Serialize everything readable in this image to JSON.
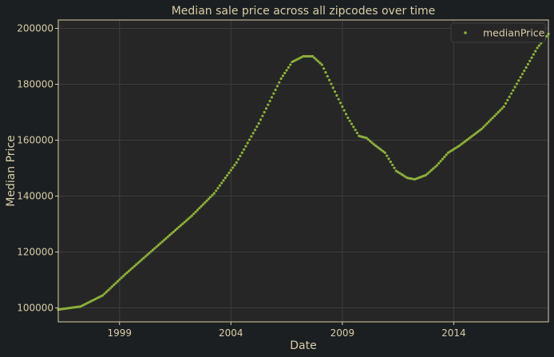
{
  "colors": {
    "background": "#1b1f21",
    "plot_background": "#262626",
    "grid": "#3d3d3d",
    "text": "#d9cda8",
    "frame": "#d9cda8",
    "series": "#8db13a"
  },
  "chart_data": {
    "type": "scatter",
    "title": "Median sale price across all zipcodes over time",
    "xlabel": "Date",
    "ylabel": "Median Price",
    "xlim": [
      "1996-04",
      "2018-04"
    ],
    "ylim": [
      95000,
      203000
    ],
    "xticks": [
      "1999",
      "2004",
      "2009",
      "2014"
    ],
    "yticks": [
      "100000",
      "120000",
      "140000",
      "160000",
      "180000",
      "200000"
    ],
    "grid": true,
    "legend": {
      "placement": "top-right"
    },
    "series": [
      {
        "name": "medianPrice",
        "marker": "point",
        "anchors": [
          [
            "1996-04",
            99400
          ],
          [
            "1997-04",
            100500
          ],
          [
            "1998-04",
            104500
          ],
          [
            "1999-04",
            112000
          ],
          [
            "2000-04",
            119000
          ],
          [
            "2001-04",
            126000
          ],
          [
            "2002-04",
            133000
          ],
          [
            "2003-04",
            141000
          ],
          [
            "2004-04",
            152000
          ],
          [
            "2005-04",
            166000
          ],
          [
            "2006-04",
            182000
          ],
          [
            "2006-10",
            188000
          ],
          [
            "2007-04",
            190000
          ],
          [
            "2007-09",
            190000
          ],
          [
            "2008-02",
            187000
          ],
          [
            "2008-10",
            176000
          ],
          [
            "2009-04",
            168000
          ],
          [
            "2009-10",
            161500
          ],
          [
            "2010-02",
            160800
          ],
          [
            "2010-06",
            158500
          ],
          [
            "2010-12",
            155500
          ],
          [
            "2011-06",
            149000
          ],
          [
            "2011-12",
            146500
          ],
          [
            "2012-04",
            146000
          ],
          [
            "2012-10",
            147500
          ],
          [
            "2013-04",
            151000
          ],
          [
            "2013-10",
            155500
          ],
          [
            "2014-04",
            158000
          ],
          [
            "2014-10",
            161000
          ],
          [
            "2015-04",
            164000
          ],
          [
            "2015-10",
            168000
          ],
          [
            "2016-04",
            172000
          ],
          [
            "2016-10",
            179000
          ],
          [
            "2017-04",
            186000
          ],
          [
            "2017-10",
            193000
          ],
          [
            "2018-04",
            198000
          ]
        ]
      }
    ]
  }
}
